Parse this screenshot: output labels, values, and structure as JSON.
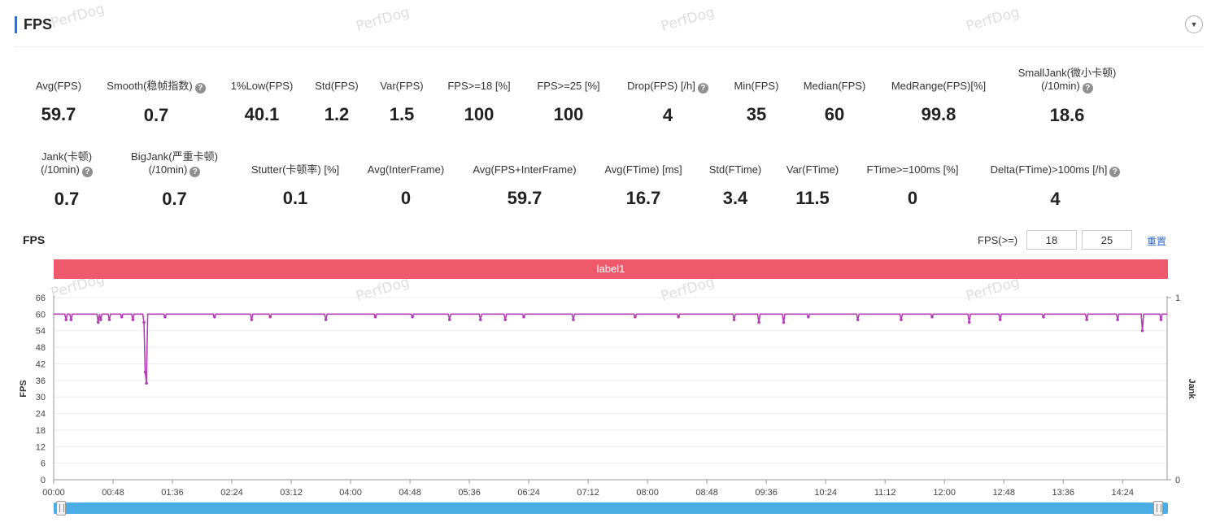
{
  "section": {
    "title": "FPS"
  },
  "watermark": "PerfDog",
  "metrics_row1": [
    {
      "label": "Avg(FPS)",
      "value": "59.7",
      "help": false
    },
    {
      "label": "Smooth(稳帧指数)",
      "value": "0.7",
      "help": true
    },
    {
      "label": "1%Low(FPS)",
      "value": "40.1",
      "help": false
    },
    {
      "label": "Std(FPS)",
      "value": "1.2",
      "help": false
    },
    {
      "label": "Var(FPS)",
      "value": "1.5",
      "help": false
    },
    {
      "label": "FPS>=18 [%]",
      "value": "100",
      "help": false
    },
    {
      "label": "FPS>=25 [%]",
      "value": "100",
      "help": false
    },
    {
      "label": "Drop(FPS) [/h]",
      "value": "4",
      "help": true
    },
    {
      "label": "Min(FPS)",
      "value": "35",
      "help": false
    },
    {
      "label": "Median(FPS)",
      "value": "60",
      "help": false
    },
    {
      "label": "MedRange(FPS)[%]",
      "value": "99.8",
      "help": false
    },
    {
      "label": "SmallJank(微小卡顿)",
      "label2": "(/10min)",
      "value": "18.6",
      "help": true
    }
  ],
  "metrics_row2": [
    {
      "label": "Jank(卡顿)",
      "label2": "(/10min)",
      "value": "0.7",
      "help": true
    },
    {
      "label": "BigJank(严重卡顿)",
      "label2": "(/10min)",
      "value": "0.7",
      "help": true
    },
    {
      "label": "Stutter(卡顿率) [%]",
      "value": "0.1",
      "help": false
    },
    {
      "label": "Avg(InterFrame)",
      "value": "0",
      "help": false
    },
    {
      "label": "Avg(FPS+InterFrame)",
      "value": "59.7",
      "help": false
    },
    {
      "label": "Avg(FTime) [ms]",
      "value": "16.7",
      "help": false
    },
    {
      "label": "Std(FTime)",
      "value": "3.4",
      "help": false
    },
    {
      "label": "Var(FTime)",
      "value": "11.5",
      "help": false
    },
    {
      "label": "FTime>=100ms [%]",
      "value": "0",
      "help": false
    },
    {
      "label": "Delta(FTime)>100ms [/h]",
      "value": "4",
      "help": true
    }
  ],
  "chart_header": {
    "title": "FPS",
    "threshold_label": "FPS(>=)",
    "threshold1": "18",
    "threshold2": "25",
    "reset_label": "重置"
  },
  "label_bar": "label1",
  "colors": {
    "series": "#b341b5",
    "label_bar": "#ee5a6b",
    "slider": "#4aaee5",
    "accent": "#3d6bc6"
  },
  "chart_data": {
    "type": "line",
    "ylabel": "FPS",
    "y2label": "Jank",
    "ylim": [
      0,
      66
    ],
    "y2lim": [
      0,
      1
    ],
    "yticks": [
      0,
      6,
      12,
      18,
      24,
      30,
      36,
      42,
      48,
      54,
      60,
      66
    ],
    "y2ticks": [
      0,
      1
    ],
    "xticks": [
      "00:00",
      "00:48",
      "01:36",
      "02:24",
      "03:12",
      "04:00",
      "04:48",
      "05:36",
      "06:24",
      "07:12",
      "08:00",
      "08:48",
      "09:36",
      "10:24",
      "11:12",
      "12:00",
      "12:48",
      "13:36",
      "14:24"
    ],
    "duration_seconds": 900,
    "baseline_fps": 60,
    "series": [
      {
        "name": "FPS",
        "dips": [
          {
            "t": 10,
            "v": 58
          },
          {
            "t": 14,
            "v": 58
          },
          {
            "t": 36,
            "v": 57
          },
          {
            "t": 38,
            "v": 58
          },
          {
            "t": 45,
            "v": 58
          },
          {
            "t": 55,
            "v": 59
          },
          {
            "t": 64,
            "v": 58
          },
          {
            "t": 73,
            "v": 57
          },
          {
            "t": 74,
            "v": 39
          },
          {
            "t": 75,
            "v": 35
          },
          {
            "t": 90,
            "v": 59
          },
          {
            "t": 130,
            "v": 59
          },
          {
            "t": 160,
            "v": 58
          },
          {
            "t": 175,
            "v": 59
          },
          {
            "t": 220,
            "v": 58
          },
          {
            "t": 260,
            "v": 59
          },
          {
            "t": 290,
            "v": 59
          },
          {
            "t": 320,
            "v": 58
          },
          {
            "t": 345,
            "v": 58
          },
          {
            "t": 365,
            "v": 58
          },
          {
            "t": 380,
            "v": 59
          },
          {
            "t": 420,
            "v": 58
          },
          {
            "t": 470,
            "v": 59
          },
          {
            "t": 505,
            "v": 59
          },
          {
            "t": 550,
            "v": 58
          },
          {
            "t": 570,
            "v": 57
          },
          {
            "t": 590,
            "v": 57
          },
          {
            "t": 610,
            "v": 59
          },
          {
            "t": 650,
            "v": 58
          },
          {
            "t": 685,
            "v": 58
          },
          {
            "t": 710,
            "v": 59
          },
          {
            "t": 740,
            "v": 57
          },
          {
            "t": 765,
            "v": 58
          },
          {
            "t": 800,
            "v": 59
          },
          {
            "t": 835,
            "v": 58
          },
          {
            "t": 860,
            "v": 58
          },
          {
            "t": 880,
            "v": 54
          },
          {
            "t": 895,
            "v": 58
          }
        ]
      }
    ]
  }
}
